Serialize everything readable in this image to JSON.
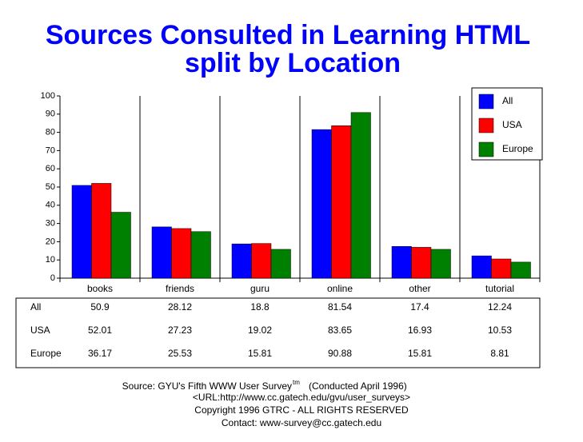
{
  "chart_data": {
    "type": "bar",
    "title": "Sources Consulted in Learning HTML",
    "subtitle": "split by Location",
    "categories": [
      "books",
      "friends",
      "guru",
      "online",
      "other",
      "tutorial"
    ],
    "series": [
      {
        "name": "All",
        "color": "#0000ff",
        "values": [
          50.9,
          28.12,
          18.8,
          81.54,
          17.4,
          12.24
        ]
      },
      {
        "name": "USA",
        "color": "#ff0000",
        "values": [
          52.01,
          27.23,
          19.02,
          83.65,
          16.93,
          10.53
        ]
      },
      {
        "name": "Europe",
        "color": "#008000",
        "values": [
          36.17,
          25.53,
          15.81,
          90.88,
          15.81,
          8.81
        ]
      }
    ],
    "ylim": [
      0,
      100
    ],
    "yticks": [
      0,
      10,
      20,
      30,
      40,
      50,
      60,
      70,
      80,
      90,
      100
    ],
    "grid": true,
    "legend": "top-right",
    "source": "Source: GYU's Fifth WWW User Survey",
    "source_mark": "tm",
    "source_note": "(Conducted April 1996)",
    "footer": [
      "<URL:http://www.cc.gatech.edu/gvu/user_surveys>",
      "Copyright 1996 GTRC -  ALL RIGHTS RESERVED",
      "Contact: www-survey@cc.gatech.edu"
    ]
  }
}
